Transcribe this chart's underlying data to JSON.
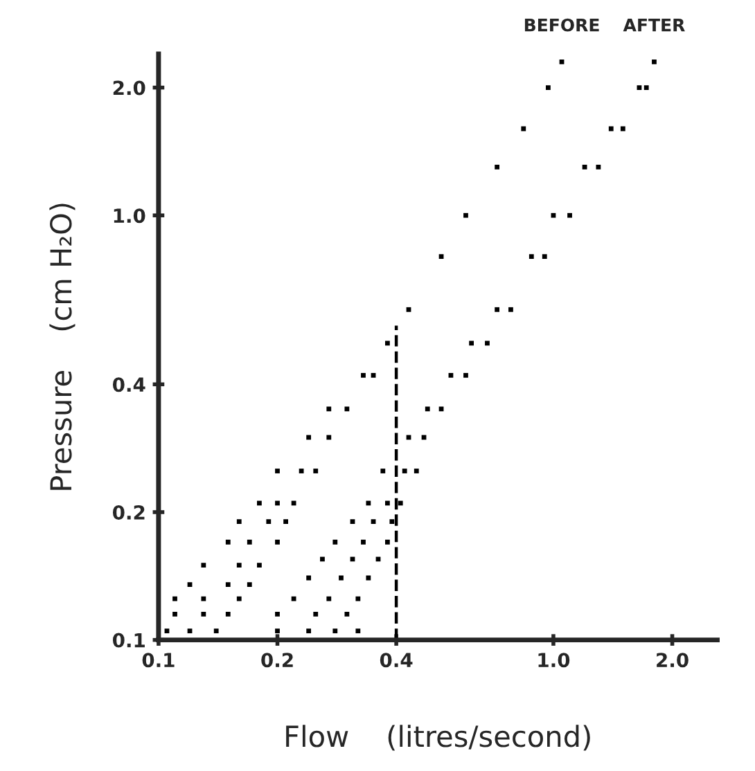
{
  "chart_data": {
    "type": "scatter",
    "log": "xy",
    "xlabel": "Flow    (litres/second)",
    "ylabel": "Pressure    (cm H₂O)",
    "xlim": [
      0.1,
      2.6
    ],
    "ylim": [
      0.1,
      2.4
    ],
    "xticks": [
      0.1,
      0.2,
      0.4,
      {
        "value": 1,
        "label": "1.0"
      },
      {
        "value": 2,
        "label": "2.0"
      }
    ],
    "yticks": [
      0.1,
      0.2,
      0.4,
      {
        "value": 1,
        "label": "1.0"
      },
      {
        "value": 2,
        "label": "2.0"
      }
    ],
    "grid": false,
    "marker": "square",
    "series": [
      {
        "name": "BEFORE",
        "color": "#000000",
        "x": [
          0.105,
          0.12,
          0.14,
          0.11,
          0.13,
          0.15,
          0.11,
          0.13,
          0.16,
          0.12,
          0.15,
          0.17,
          0.13,
          0.16,
          0.18,
          0.15,
          0.17,
          0.2,
          0.16,
          0.19,
          0.21,
          0.18,
          0.2,
          0.22,
          0.2,
          0.23,
          0.25,
          0.24,
          0.27,
          0.27,
          0.3,
          0.33,
          0.35,
          0.38,
          0.43,
          0.52,
          0.6,
          0.72,
          0.84,
          0.97,
          1.05
        ],
        "values": [
          0.105,
          0.105,
          0.105,
          0.115,
          0.115,
          0.115,
          0.125,
          0.125,
          0.125,
          0.135,
          0.135,
          0.135,
          0.15,
          0.15,
          0.15,
          0.17,
          0.17,
          0.17,
          0.19,
          0.19,
          0.19,
          0.21,
          0.21,
          0.21,
          0.25,
          0.25,
          0.25,
          0.3,
          0.3,
          0.35,
          0.35,
          0.42,
          0.42,
          0.5,
          0.6,
          0.8,
          1.0,
          1.3,
          1.6,
          2.0,
          2.3
        ]
      },
      {
        "name": "AFTER",
        "color": "#000000",
        "x": [
          0.2,
          0.24,
          0.28,
          0.32,
          0.2,
          0.25,
          0.3,
          0.22,
          0.27,
          0.32,
          0.24,
          0.29,
          0.34,
          0.26,
          0.31,
          0.36,
          0.28,
          0.33,
          0.38,
          0.31,
          0.35,
          0.39,
          0.34,
          0.38,
          0.41,
          0.37,
          0.42,
          0.45,
          0.43,
          0.47,
          0.48,
          0.52,
          0.55,
          0.6,
          0.62,
          0.68,
          0.72,
          0.78,
          0.88,
          0.95,
          1.0,
          1.1,
          1.2,
          1.3,
          1.4,
          1.5,
          1.65,
          1.72,
          1.8
        ],
        "values": [
          0.105,
          0.105,
          0.105,
          0.105,
          0.115,
          0.115,
          0.115,
          0.125,
          0.125,
          0.125,
          0.14,
          0.14,
          0.14,
          0.155,
          0.155,
          0.155,
          0.17,
          0.17,
          0.17,
          0.19,
          0.19,
          0.19,
          0.21,
          0.21,
          0.21,
          0.25,
          0.25,
          0.25,
          0.3,
          0.3,
          0.35,
          0.35,
          0.42,
          0.42,
          0.5,
          0.5,
          0.6,
          0.6,
          0.8,
          0.8,
          1.0,
          1.0,
          1.3,
          1.3,
          1.6,
          1.6,
          2.0,
          2.0,
          2.3
        ]
      },
      {
        "type": "line",
        "color": "#000000",
        "line_style": "dashed",
        "marker": "none",
        "x": [
          0.4,
          0.4
        ],
        "values": [
          0.1,
          0.55
        ]
      }
    ]
  }
}
